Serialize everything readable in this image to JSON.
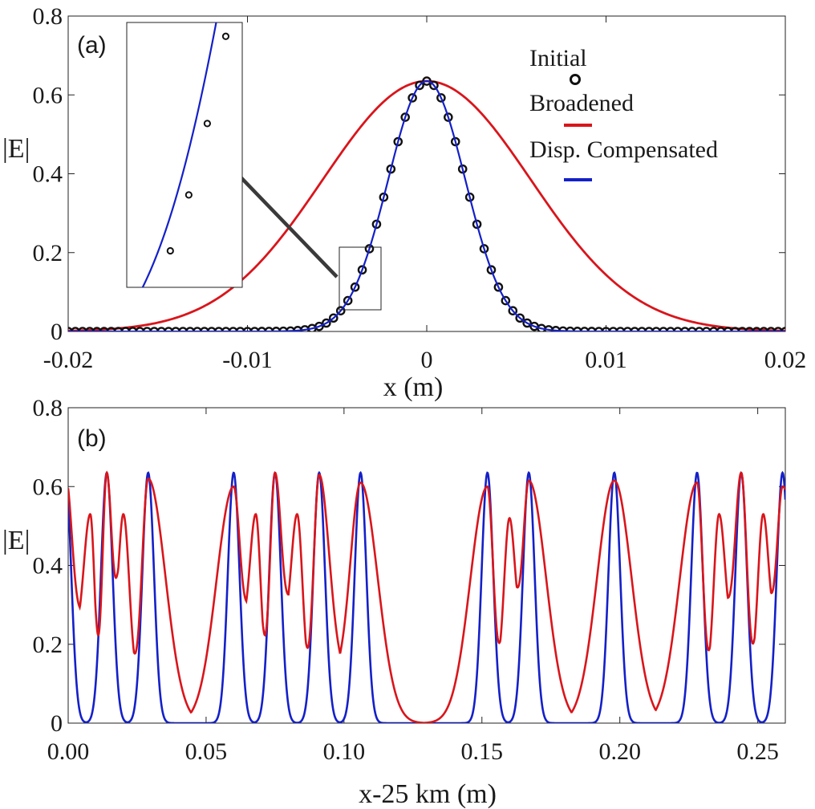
{
  "chart_data": [
    {
      "type": "line",
      "panel_label": "(a)",
      "xlabel": "x (m)",
      "ylabel": "|E|",
      "xlim": [
        -0.02,
        0.02
      ],
      "ylim": [
        0,
        0.8
      ],
      "x_ticks": [
        -0.02,
        -0.01,
        0,
        0.01,
        0.02
      ],
      "x_tick_labels": [
        "-0.02",
        "-0.01",
        "0",
        "0.01",
        "0.02"
      ],
      "y_ticks": [
        0,
        0.2,
        0.4,
        0.6,
        0.8
      ],
      "y_tick_labels": [
        "0",
        "0.2",
        "0.4",
        "0.6",
        "0.8"
      ],
      "legend": {
        "placement": "top-right",
        "entries": [
          "Initial",
          "Broadened",
          "Disp. Compensated"
        ]
      },
      "series": [
        {
          "name": "Initial",
          "marker": "circle",
          "color": "#111111",
          "amplitude": 0.635,
          "gaussian_sigma_m": 0.00215,
          "point_spacing_m": 0.0004
        },
        {
          "name": "Broadened",
          "color": "#d9151b",
          "amplitude": 0.635,
          "gaussian_sigma_m": 0.0058
        },
        {
          "name": "Disp. Compensated",
          "color": "#1420c8",
          "amplitude": 0.635,
          "gaussian_sigma_m": 0.00215
        }
      ],
      "inset": {
        "zoom_region_x": [
          -0.0051,
          -0.0026
        ],
        "zoom_region_y": [
          0.055,
          0.215
        ],
        "annotation": "arrow"
      }
    },
    {
      "type": "line",
      "panel_label": "(b)",
      "xlabel": "x-25 km (m)",
      "ylabel": "|E|",
      "xlim": [
        0,
        0.26
      ],
      "ylim": [
        0,
        0.8
      ],
      "x_ticks": [
        0,
        0.05,
        0.1,
        0.15,
        0.2,
        0.25
      ],
      "x_tick_labels": [
        "0.00",
        "0.05",
        "0.10",
        "0.15",
        "0.20",
        "0.25"
      ],
      "y_ticks": [
        0,
        0.2,
        0.4,
        0.6,
        0.8
      ],
      "y_tick_labels": [
        "0",
        "0.2",
        "0.4",
        "0.6",
        "0.8"
      ],
      "series": [
        {
          "name": "Disp. Compensated",
          "color": "#1420c8",
          "amplitude": 0.635,
          "gaussian_sigma_m": 0.0021,
          "pulse_centers_m": [
            -0.001,
            0.014,
            0.029,
            0.06,
            0.075,
            0.091,
            0.106,
            0.152,
            0.167,
            0.198,
            0.228,
            0.244,
            0.259
          ]
        },
        {
          "name": "Broadened",
          "color": "#d9151b",
          "peaks_m": [
            -0.001,
            0.008,
            0.014,
            0.02,
            0.029,
            0.06,
            0.068,
            0.075,
            0.083,
            0.091,
            0.106,
            0.152,
            0.16,
            0.167,
            0.198,
            0.228,
            0.236,
            0.244,
            0.252,
            0.259
          ],
          "peak_values": [
            0.63,
            0.53,
            0.635,
            0.53,
            0.62,
            0.6,
            0.53,
            0.635,
            0.53,
            0.63,
            0.61,
            0.6,
            0.52,
            0.615,
            0.615,
            0.61,
            0.53,
            0.635,
            0.53,
            0.6
          ],
          "dip_values": [
            0.34,
            0.21,
            0.35,
            0.2,
            0.35,
            0.22,
            0.35,
            0.2,
            0.36,
            0.22,
            0.35,
            0.2
          ],
          "near_zero_x_m": [
            0.045,
            0.129,
            0.183,
            0.213
          ]
        }
      ]
    }
  ]
}
